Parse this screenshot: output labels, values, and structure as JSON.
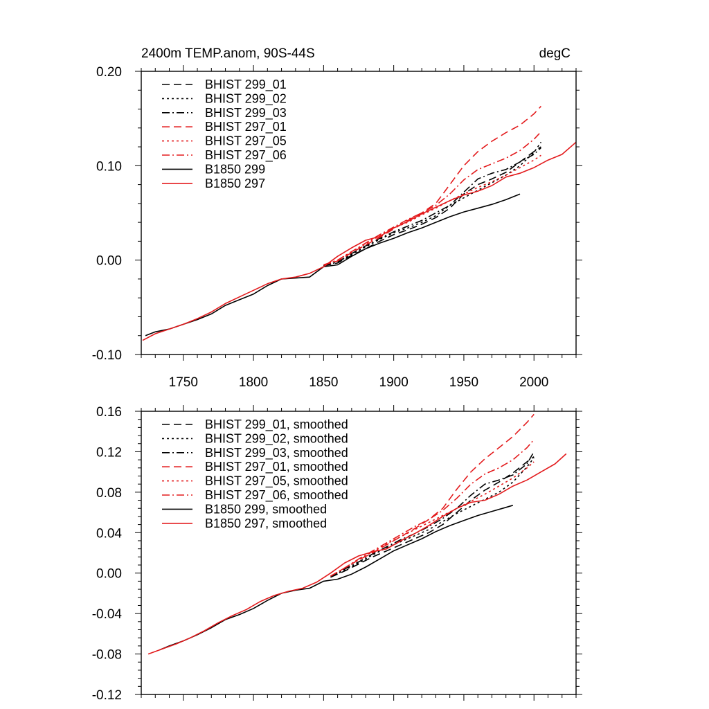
{
  "figure": {
    "title_left": "2400m TEMP.anom, 90S-44S",
    "title_right": "degC"
  },
  "colors": {
    "black": "#000000",
    "red": "#e31a1c"
  },
  "chart_data": [
    {
      "type": "line",
      "panel": "top",
      "xlim": [
        1720,
        2030
      ],
      "ylim": [
        -0.1,
        0.2
      ],
      "xticks": [
        1750,
        1800,
        1850,
        1900,
        1950,
        2000
      ],
      "xtick_labels": [
        "1750",
        "1800",
        "1850",
        "1900",
        "1950",
        "2000"
      ],
      "yticks": [
        -0.1,
        0.0,
        0.1,
        0.2
      ],
      "ytick_labels": [
        "-0.10",
        "0.00",
        "0.10",
        "0.20"
      ],
      "legend_position": "top-left",
      "series": [
        {
          "name": "BHIST 299_01",
          "color": "black",
          "dash": "long",
          "x": [
            1850,
            1860,
            1870,
            1880,
            1890,
            1900,
            1910,
            1920,
            1930,
            1940,
            1950,
            1960,
            1970,
            1980,
            1990,
            2000,
            2005
          ],
          "y": [
            -0.006,
            -0.003,
            0.005,
            0.012,
            0.02,
            0.027,
            0.032,
            0.038,
            0.045,
            0.055,
            0.07,
            0.08,
            0.086,
            0.093,
            0.104,
            0.115,
            0.12
          ]
        },
        {
          "name": "BHIST 299_02",
          "color": "black",
          "dash": "dot",
          "x": [
            1850,
            1860,
            1870,
            1880,
            1890,
            1900,
            1910,
            1920,
            1930,
            1940,
            1950,
            1960,
            1970,
            1980,
            1990,
            2000,
            2005
          ],
          "y": [
            -0.006,
            -0.002,
            0.006,
            0.014,
            0.022,
            0.029,
            0.034,
            0.04,
            0.047,
            0.058,
            0.066,
            0.074,
            0.082,
            0.09,
            0.1,
            0.114,
            0.125
          ]
        },
        {
          "name": "BHIST 299_03",
          "color": "black",
          "dash": "dashdot",
          "x": [
            1850,
            1860,
            1870,
            1880,
            1890,
            1900,
            1910,
            1920,
            1930,
            1940,
            1950,
            1960,
            1970,
            1980,
            1990,
            2000,
            2005
          ],
          "y": [
            -0.006,
            -0.002,
            0.007,
            0.015,
            0.023,
            0.03,
            0.036,
            0.042,
            0.05,
            0.058,
            0.072,
            0.086,
            0.092,
            0.096,
            0.104,
            0.112,
            0.119
          ]
        },
        {
          "name": "BHIST 297_01",
          "color": "red",
          "dash": "long",
          "x": [
            1850,
            1860,
            1870,
            1880,
            1890,
            1900,
            1910,
            1920,
            1930,
            1940,
            1950,
            1960,
            1970,
            1980,
            1990,
            2000,
            2005
          ],
          "y": [
            -0.005,
            -0.001,
            0.008,
            0.016,
            0.024,
            0.033,
            0.042,
            0.05,
            0.06,
            0.08,
            0.1,
            0.115,
            0.126,
            0.135,
            0.143,
            0.155,
            0.163
          ]
        },
        {
          "name": "BHIST 297_05",
          "color": "red",
          "dash": "dot",
          "x": [
            1850,
            1860,
            1870,
            1880,
            1890,
            1900,
            1910,
            1920,
            1930,
            1940,
            1950,
            1960,
            1970,
            1980,
            1990,
            2000,
            2005
          ],
          "y": [
            -0.005,
            0.0,
            0.009,
            0.017,
            0.026,
            0.034,
            0.04,
            0.048,
            0.055,
            0.063,
            0.07,
            0.077,
            0.083,
            0.09,
            0.098,
            0.106,
            0.111
          ]
        },
        {
          "name": "BHIST 297_06",
          "color": "red",
          "dash": "dashdot",
          "x": [
            1850,
            1860,
            1870,
            1880,
            1890,
            1900,
            1910,
            1920,
            1930,
            1940,
            1950,
            1960,
            1970,
            1980,
            1990,
            2000,
            2005
          ],
          "y": [
            -0.005,
            0.0,
            0.009,
            0.018,
            0.027,
            0.035,
            0.043,
            0.05,
            0.058,
            0.07,
            0.085,
            0.096,
            0.102,
            0.108,
            0.116,
            0.128,
            0.136
          ]
        },
        {
          "name": "B1850 299",
          "color": "black",
          "dash": "solid",
          "x": [
            1723,
            1730,
            1740,
            1750,
            1760,
            1770,
            1780,
            1790,
            1800,
            1810,
            1820,
            1830,
            1840,
            1850,
            1860,
            1870,
            1880,
            1890,
            1900,
            1910,
            1920,
            1930,
            1940,
            1950,
            1960,
            1970,
            1980,
            1990
          ],
          "y": [
            -0.08,
            -0.076,
            -0.073,
            -0.068,
            -0.063,
            -0.057,
            -0.048,
            -0.042,
            -0.036,
            -0.027,
            -0.02,
            -0.019,
            -0.018,
            -0.007,
            -0.005,
            0.004,
            0.012,
            0.018,
            0.023,
            0.029,
            0.034,
            0.04,
            0.046,
            0.051,
            0.055,
            0.059,
            0.064,
            0.07
          ]
        },
        {
          "name": "B1850 297",
          "color": "red",
          "dash": "solid",
          "x": [
            1721,
            1730,
            1740,
            1750,
            1760,
            1770,
            1780,
            1790,
            1800,
            1810,
            1820,
            1830,
            1840,
            1850,
            1860,
            1870,
            1880,
            1890,
            1900,
            1910,
            1920,
            1930,
            1940,
            1950,
            1960,
            1970,
            1980,
            1990,
            2000,
            2010,
            2020,
            2030
          ],
          "y": [
            -0.085,
            -0.078,
            -0.073,
            -0.068,
            -0.062,
            -0.055,
            -0.046,
            -0.039,
            -0.032,
            -0.025,
            -0.02,
            -0.018,
            -0.014,
            -0.007,
            0.004,
            0.013,
            0.021,
            0.025,
            0.034,
            0.041,
            0.049,
            0.056,
            0.063,
            0.069,
            0.073,
            0.079,
            0.088,
            0.092,
            0.098,
            0.106,
            0.112,
            0.125
          ]
        }
      ]
    },
    {
      "type": "line",
      "panel": "bottom",
      "xlim": [
        1720,
        2030
      ],
      "ylim": [
        -0.12,
        0.16
      ],
      "xticks": [
        1750,
        1800,
        1850,
        1900,
        1950,
        2000
      ],
      "xtick_labels": [],
      "yticks": [
        -0.12,
        -0.08,
        -0.04,
        0.0,
        0.04,
        0.08,
        0.12,
        0.16
      ],
      "ytick_labels": [
        "-0.12",
        "-0.08",
        "-0.04",
        "0.00",
        "0.04",
        "0.08",
        "0.12",
        "0.16"
      ],
      "legend_position": "top-left",
      "series": [
        {
          "name": "BHIST 299_01, smoothed",
          "color": "black",
          "dash": "long",
          "x": [
            1855,
            1865,
            1875,
            1885,
            1895,
            1905,
            1915,
            1925,
            1935,
            1945,
            1955,
            1965,
            1975,
            1985,
            1995,
            2000
          ],
          "y": [
            -0.004,
            0.002,
            0.009,
            0.016,
            0.022,
            0.028,
            0.034,
            0.04,
            0.048,
            0.06,
            0.072,
            0.082,
            0.09,
            0.099,
            0.11,
            0.115
          ]
        },
        {
          "name": "BHIST 299_02, smoothed",
          "color": "black",
          "dash": "dot",
          "x": [
            1855,
            1865,
            1875,
            1885,
            1895,
            1905,
            1915,
            1925,
            1935,
            1945,
            1955,
            1965,
            1975,
            1985,
            1995,
            2000
          ],
          "y": [
            -0.004,
            0.003,
            0.01,
            0.018,
            0.025,
            0.031,
            0.037,
            0.043,
            0.051,
            0.059,
            0.066,
            0.073,
            0.08,
            0.09,
            0.105,
            0.114
          ]
        },
        {
          "name": "BHIST 299_03, smoothed",
          "color": "black",
          "dash": "dashdot",
          "x": [
            1855,
            1865,
            1875,
            1885,
            1895,
            1905,
            1915,
            1925,
            1935,
            1945,
            1955,
            1965,
            1975,
            1985,
            1995,
            2000
          ],
          "y": [
            -0.004,
            0.004,
            0.011,
            0.019,
            0.026,
            0.033,
            0.039,
            0.046,
            0.054,
            0.064,
            0.077,
            0.088,
            0.092,
            0.097,
            0.108,
            0.12
          ]
        },
        {
          "name": "BHIST 297_01, smoothed",
          "color": "red",
          "dash": "long",
          "x": [
            1855,
            1865,
            1875,
            1885,
            1895,
            1905,
            1915,
            1925,
            1935,
            1945,
            1955,
            1965,
            1975,
            1985,
            1995,
            2000
          ],
          "y": [
            -0.003,
            0.005,
            0.013,
            0.02,
            0.028,
            0.036,
            0.044,
            0.053,
            0.064,
            0.083,
            0.1,
            0.113,
            0.124,
            0.135,
            0.149,
            0.157
          ]
        },
        {
          "name": "BHIST 297_05, smoothed",
          "color": "red",
          "dash": "dot",
          "x": [
            1855,
            1865,
            1875,
            1885,
            1895,
            1905,
            1915,
            1925,
            1935,
            1945,
            1955,
            1965,
            1975,
            1985,
            1995,
            2000
          ],
          "y": [
            -0.003,
            0.005,
            0.013,
            0.021,
            0.029,
            0.036,
            0.043,
            0.05,
            0.057,
            0.064,
            0.071,
            0.078,
            0.086,
            0.094,
            0.104,
            0.11
          ]
        },
        {
          "name": "BHIST 297_06, smoothed",
          "color": "red",
          "dash": "dashdot",
          "x": [
            1855,
            1865,
            1875,
            1885,
            1895,
            1905,
            1915,
            1925,
            1935,
            1945,
            1955,
            1965,
            1975,
            1985,
            1995,
            2000
          ],
          "y": [
            -0.003,
            0.005,
            0.014,
            0.022,
            0.03,
            0.038,
            0.046,
            0.053,
            0.062,
            0.074,
            0.088,
            0.098,
            0.104,
            0.112,
            0.124,
            0.132
          ]
        },
        {
          "name": "B1850 299, smoothed",
          "color": "black",
          "dash": "solid",
          "x": [
            1733,
            1740,
            1750,
            1760,
            1770,
            1780,
            1790,
            1800,
            1810,
            1820,
            1830,
            1840,
            1850,
            1860,
            1870,
            1880,
            1890,
            1900,
            1910,
            1920,
            1930,
            1940,
            1950,
            1960,
            1970,
            1980,
            1985
          ],
          "y": [
            -0.076,
            -0.072,
            -0.067,
            -0.061,
            -0.054,
            -0.046,
            -0.041,
            -0.035,
            -0.027,
            -0.02,
            -0.017,
            -0.015,
            -0.008,
            -0.006,
            -0.001,
            0.006,
            0.014,
            0.022,
            0.028,
            0.034,
            0.041,
            0.047,
            0.052,
            0.057,
            0.061,
            0.065,
            0.067
          ]
        },
        {
          "name": "B1850 297, smoothed",
          "color": "red",
          "dash": "solid",
          "x": [
            1725,
            1735,
            1745,
            1755,
            1765,
            1775,
            1785,
            1795,
            1805,
            1815,
            1825,
            1835,
            1845,
            1855,
            1865,
            1875,
            1885,
            1895,
            1905,
            1915,
            1925,
            1935,
            1945,
            1955,
            1965,
            1975,
            1985,
            1995,
            2005,
            2015,
            2023
          ],
          "y": [
            -0.08,
            -0.075,
            -0.07,
            -0.064,
            -0.057,
            -0.049,
            -0.042,
            -0.036,
            -0.028,
            -0.022,
            -0.018,
            -0.015,
            -0.009,
            0.0,
            0.01,
            0.017,
            0.021,
            0.024,
            0.032,
            0.039,
            0.047,
            0.056,
            0.064,
            0.07,
            0.072,
            0.078,
            0.086,
            0.092,
            0.1,
            0.108,
            0.118
          ]
        }
      ]
    }
  ]
}
